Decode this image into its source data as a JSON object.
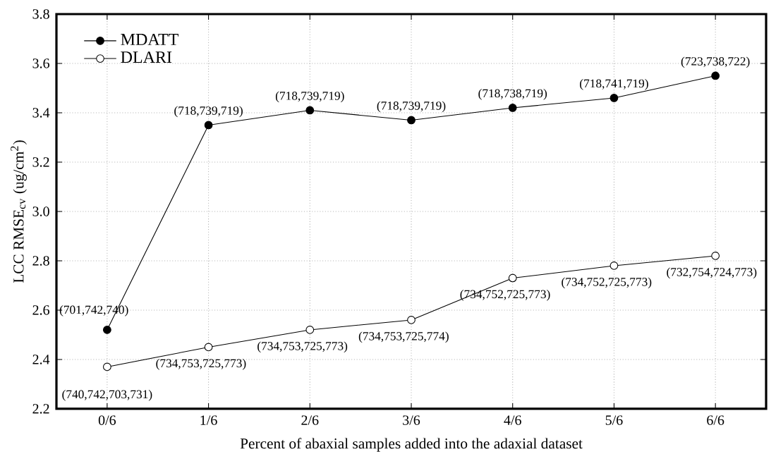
{
  "chart_data": {
    "type": "line",
    "xlabel": "Percent of abaxial samples added into the adaxial dataset",
    "ylabel": "LCC RMSE$_{cv}$ (ug/cm$^{2}$)",
    "categories": [
      "0/6",
      "1/6",
      "2/6",
      "3/6",
      "4/6",
      "5/6",
      "6/6"
    ],
    "series": [
      {
        "name": "MDATT",
        "color": "#000000",
        "values": [
          2.52,
          3.35,
          3.41,
          3.37,
          3.42,
          3.46,
          3.55
        ]
      },
      {
        "name": "DLARI",
        "color": "#000000",
        "values": [
          2.37,
          2.45,
          2.52,
          2.56,
          2.73,
          2.78,
          2.82
        ]
      }
    ],
    "ylim": [
      2.2,
      3.8
    ],
    "yticks": [
      2.2,
      2.4,
      2.6,
      2.8,
      {
        "value": 3.0,
        "label": "3.0"
      },
      3.2,
      3.4,
      3.6,
      3.8
    ],
    "grid": true,
    "legend": "top left",
    "marker": "circle",
    "line_style": "solid",
    "annotations": [
      {
        "text": "(701,742,740)",
        "x": "0/6",
        "y": 2.52
      },
      {
        "text": "(718,739,719)",
        "x": "1/6",
        "y": 3.35
      },
      {
        "text": "(718,739,719)",
        "x": "2/6",
        "y": 3.41
      },
      {
        "text": "(718,739,719)",
        "x": "3/6",
        "y": 3.37
      },
      {
        "text": "(718,738,719)",
        "x": "4/6",
        "y": 3.42
      },
      {
        "text": "(718,741,719)",
        "x": "5/6",
        "y": 3.46
      },
      {
        "text": "(723,738,722)",
        "x": "6/6",
        "y": 3.55
      },
      {
        "text": "(740,742,703,731)",
        "x": "0/6",
        "y": 2.37
      },
      {
        "text": "(734,753,725,773)",
        "x": "1/6",
        "y": 2.45
      },
      {
        "text": "(734,753,725,773)",
        "x": "2/6",
        "y": 2.52
      },
      {
        "text": "(734,753,725,774)",
        "x": "3/6",
        "y": 2.56
      },
      {
        "text": "(734,752,725,773)",
        "x": "4/6",
        "y": 2.73
      },
      {
        "text": "(734,752,725,773)",
        "x": "5/6",
        "y": 2.78
      },
      {
        "text": "(732,754,724,773)",
        "x": "6/6",
        "y": 2.82
      }
    ]
  }
}
